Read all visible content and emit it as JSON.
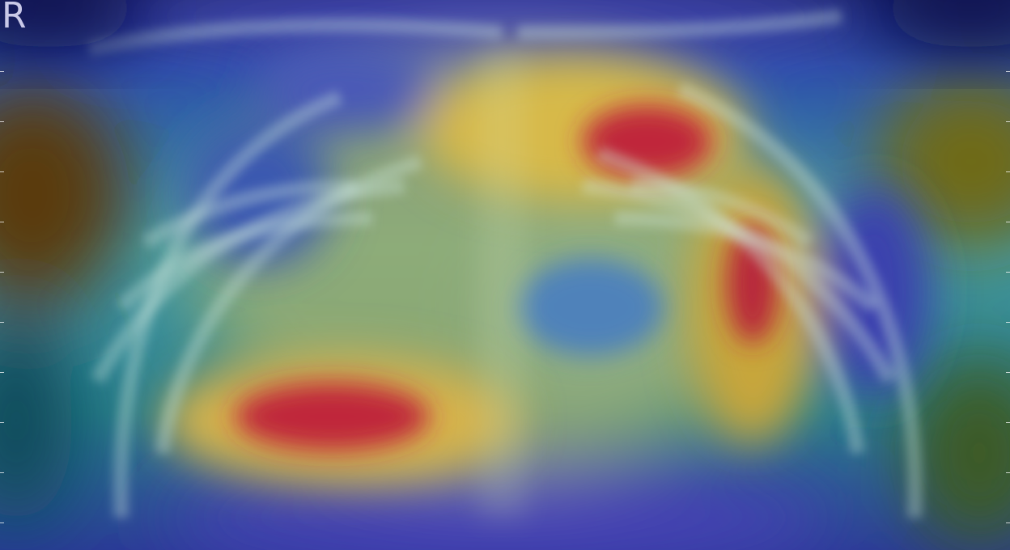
{
  "image": {
    "description_icon": "chest-xray-heatmap",
    "side_marker": "R",
    "colors": {
      "marker": "#c9c9e8",
      "background_blue": "#2a2a8c",
      "hot_red": "#c0283a",
      "warm_yellow": "#d9c24a",
      "cool_cyan": "#5fd0d8",
      "dark_navy": "#101a55"
    }
  }
}
